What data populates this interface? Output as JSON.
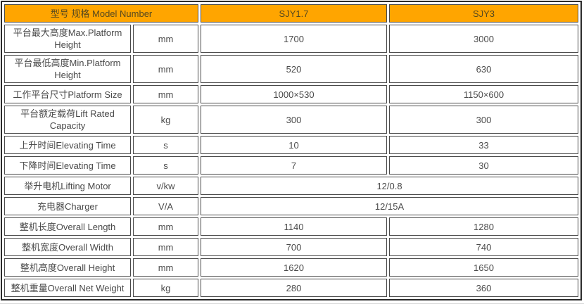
{
  "colors": {
    "header_bg": "#FFA500",
    "header_text": "#55481f",
    "cell_text": "#4a4a4a",
    "cell_border": "#4a4a4a",
    "outer_border": "#2b2b2b"
  },
  "table": {
    "header": {
      "model_label": "型号 规格 Model Number",
      "columns": [
        "SJY1.7",
        "SJY3"
      ]
    },
    "rows": [
      {
        "label": "平台最大高度Max.Platform Height",
        "unit": "mm",
        "values": [
          "1700",
          "3000"
        ]
      },
      {
        "label": "平台最低高度Min.Platform Height",
        "unit": "mm",
        "values": [
          "520",
          "630"
        ]
      },
      {
        "label": "工作平台尺寸Platform Size",
        "unit": "mm",
        "values": [
          "1000×530",
          "1150×600"
        ]
      },
      {
        "label": "平台额定载荷Lift Rated Capacity",
        "unit": "kg",
        "values": [
          "300",
          "300"
        ]
      },
      {
        "label": "上升时间Elevating Time",
        "unit": "s",
        "values": [
          "10",
          "33"
        ]
      },
      {
        "label": "下降时间Elevating Time",
        "unit": "s",
        "values": [
          "7",
          "30"
        ]
      },
      {
        "label": "举升电机Lifting Motor",
        "unit": "v/kw",
        "values": [
          "12/0.8"
        ]
      },
      {
        "label": "充电器Charger",
        "unit": "V/A",
        "values": [
          "12/15A"
        ]
      },
      {
        "label": "整机长度Overall Length",
        "unit": "mm",
        "values": [
          "1140",
          "1280"
        ]
      },
      {
        "label": "整机宽度Overall Width",
        "unit": "mm",
        "values": [
          "700",
          "740"
        ]
      },
      {
        "label": "整机高度Overall Height",
        "unit": "mm",
        "values": [
          "1620",
          "1650"
        ]
      },
      {
        "label": "整机重量Overall Net Weight",
        "unit": "kg",
        "values": [
          "280",
          "360"
        ]
      }
    ]
  }
}
